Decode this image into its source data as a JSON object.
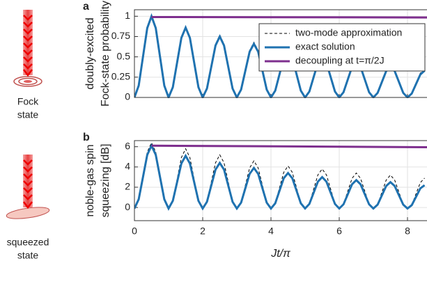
{
  "figure": {
    "fock_label": [
      "Fock",
      "state"
    ],
    "squeezed_label": [
      "squeezed",
      "state"
    ]
  },
  "chart_data": [
    {
      "type": "line",
      "panel": "a",
      "ylabel": [
        "doubly-excited",
        "Fock-state probability"
      ],
      "xlim": [
        0,
        8.6
      ],
      "ylim": [
        0,
        1.08
      ],
      "xticks": [
        0,
        2,
        4,
        6,
        8
      ],
      "xticklabels": false,
      "yticks": [
        0,
        0.25,
        0.5,
        0.75,
        1
      ],
      "grid": true,
      "legend": "upper right",
      "x": [
        0,
        0.125,
        0.25,
        0.375,
        0.5,
        0.625,
        0.75,
        0.875,
        1,
        1.125,
        1.25,
        1.375,
        1.5,
        1.625,
        1.75,
        1.875,
        2,
        2.125,
        2.25,
        2.375,
        2.5,
        2.625,
        2.75,
        2.875,
        3,
        3.125,
        3.25,
        3.375,
        3.5,
        3.625,
        3.75,
        3.875,
        4,
        4.125,
        4.25,
        4.375,
        4.5,
        4.625,
        4.75,
        4.875,
        5,
        5.125,
        5.25,
        5.375,
        5.5,
        5.625,
        5.75,
        5.875,
        6,
        6.125,
        6.25,
        6.375,
        6.5,
        6.625,
        6.75,
        6.875,
        7,
        7.125,
        7.25,
        7.375,
        7.5,
        7.625,
        7.75,
        7.875,
        8,
        8.125,
        8.25,
        8.375,
        8.5
      ],
      "series": [
        {
          "name": "two-mode approximation",
          "color": "#000000",
          "dash": true,
          "values": [
            0,
            0.143,
            0.49,
            0.837,
            0.98,
            0.837,
            0.49,
            0.143,
            0,
            0.127,
            0.435,
            0.743,
            0.87,
            0.743,
            0.435,
            0.127,
            0,
            0.113,
            0.385,
            0.657,
            0.77,
            0.657,
            0.385,
            0.113,
            0,
            0.1,
            0.34,
            0.58,
            0.68,
            0.58,
            0.34,
            0.1,
            0,
            0.086,
            0.295,
            0.504,
            0.59,
            0.504,
            0.295,
            0.086,
            0,
            0.076,
            0.26,
            0.444,
            0.52,
            0.444,
            0.26,
            0.076,
            0,
            0.067,
            0.23,
            0.393,
            0.46,
            0.393,
            0.23,
            0.067,
            0,
            0.059,
            0.2,
            0.341,
            0.4,
            0.341,
            0.2,
            0.059,
            0,
            0.051,
            0.175,
            0.299,
            0.35
          ]
        },
        {
          "name": "exact solution",
          "color": "#1f72b0",
          "width": 3,
          "values": [
            0,
            0.146,
            0.5,
            0.854,
            1,
            0.854,
            0.5,
            0.146,
            0,
            0.126,
            0.43,
            0.734,
            0.86,
            0.734,
            0.43,
            0.126,
            0,
            0.11,
            0.375,
            0.64,
            0.75,
            0.64,
            0.375,
            0.11,
            0,
            0.097,
            0.33,
            0.563,
            0.66,
            0.563,
            0.33,
            0.097,
            0,
            0.083,
            0.285,
            0.487,
            0.57,
            0.487,
            0.285,
            0.083,
            0,
            0.073,
            0.25,
            0.427,
            0.5,
            0.427,
            0.25,
            0.073,
            0,
            0.064,
            0.22,
            0.376,
            0.44,
            0.376,
            0.22,
            0.064,
            0,
            0.056,
            0.19,
            0.324,
            0.38,
            0.324,
            0.19,
            0.056,
            0,
            0.048,
            0.165,
            0.282,
            0.33
          ]
        },
        {
          "name": "decoupling at t=π/2J",
          "color": "#7e2f8e",
          "width": 3,
          "x": [
            0.5,
            8.6
          ],
          "values": [
            0.99,
            0.985
          ]
        }
      ]
    },
    {
      "type": "line",
      "panel": "b",
      "ylabel": [
        "noble-gas spin",
        "squeezing [dB]"
      ],
      "xlabel": "Jt/π",
      "xlim": [
        0,
        8.6
      ],
      "ylim": [
        -1.3,
        6.6
      ],
      "xticks": [
        0,
        2,
        4,
        6,
        8
      ],
      "xticklabels": true,
      "yticks": [
        0,
        2,
        4,
        6
      ],
      "grid": true,
      "x": [
        0,
        0.125,
        0.25,
        0.375,
        0.5,
        0.625,
        0.75,
        0.875,
        1,
        1.125,
        1.25,
        1.375,
        1.5,
        1.625,
        1.75,
        1.875,
        2,
        2.125,
        2.25,
        2.375,
        2.5,
        2.625,
        2.75,
        2.875,
        3,
        3.125,
        3.25,
        3.375,
        3.5,
        3.625,
        3.75,
        3.875,
        4,
        4.125,
        4.25,
        4.375,
        4.5,
        4.625,
        4.75,
        4.875,
        5,
        5.125,
        5.25,
        5.375,
        5.5,
        5.625,
        5.75,
        5.875,
        6,
        6.125,
        6.25,
        6.375,
        6.5,
        6.625,
        6.75,
        6.875,
        7,
        7.125,
        7.25,
        7.375,
        7.5,
        7.625,
        7.75,
        7.875,
        8,
        8.125,
        8.25,
        8.375,
        8.5
      ],
      "series": [
        {
          "color": "#000000",
          "dash": true,
          "values": [
            0,
            0.93,
            3.2,
            5.46,
            6.4,
            5.46,
            3.2,
            0.93,
            -0.2,
            0.68,
            2.8,
            4.92,
            5.8,
            4.92,
            2.8,
            0.68,
            -0.2,
            0.59,
            2.5,
            4.41,
            5.2,
            4.41,
            2.5,
            0.59,
            -0.2,
            0.5,
            2.2,
            3.9,
            4.6,
            3.9,
            2.2,
            0.5,
            -0.2,
            0.43,
            1.95,
            3.47,
            4.1,
            3.47,
            1.95,
            0.43,
            -0.2,
            0.38,
            1.8,
            3.22,
            3.8,
            3.22,
            1.8,
            0.38,
            -0.2,
            0.33,
            1.6,
            2.87,
            3.4,
            2.87,
            1.6,
            0.33,
            -0.2,
            0.3,
            1.5,
            2.7,
            3.2,
            2.7,
            1.5,
            0.3,
            -0.2,
            0.25,
            1.35,
            2.45,
            2.9
          ]
        },
        {
          "color": "#1f72b0",
          "width": 3,
          "values": [
            -0.1,
            0.81,
            3.0,
            5.19,
            6.1,
            5.19,
            3.0,
            0.81,
            -0.1,
            0.66,
            2.5,
            4.34,
            5.1,
            4.34,
            2.5,
            0.66,
            -0.1,
            0.56,
            2.15,
            3.74,
            4.4,
            3.74,
            2.15,
            0.56,
            -0.1,
            0.48,
            1.9,
            3.32,
            3.9,
            3.32,
            1.9,
            0.48,
            -0.1,
            0.41,
            1.65,
            2.89,
            3.4,
            2.89,
            1.65,
            0.41,
            -0.1,
            0.35,
            1.45,
            2.55,
            3.0,
            2.55,
            1.45,
            0.35,
            -0.1,
            0.31,
            1.3,
            2.29,
            2.7,
            2.29,
            1.3,
            0.31,
            -0.1,
            0.28,
            1.2,
            2.12,
            2.5,
            2.12,
            1.2,
            0.28,
            -0.1,
            0.23,
            1.05,
            1.88,
            2.2
          ]
        },
        {
          "color": "#7e2f8e",
          "width": 3,
          "x": [
            0.5,
            8.6
          ],
          "values": [
            6.1,
            5.95
          ]
        }
      ]
    }
  ]
}
